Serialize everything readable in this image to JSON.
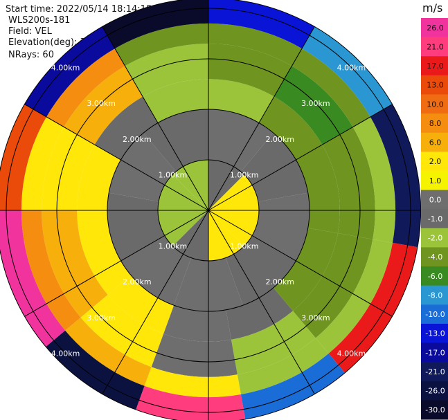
{
  "header": {
    "start_time": "Start time: 2022/05/14 18:14:18",
    "device": "WLS200s-181",
    "field": "Field: VEL",
    "elevation": "Elevation(deg): 35.30",
    "nrays": "NRays: 60"
  },
  "chart_data": {
    "type": "heatmap",
    "projection": "polar-ppi",
    "unit_label": "m/s",
    "range_rings": [
      {
        "value": 1,
        "label": "1.00km"
      },
      {
        "value": 2,
        "label": "2.00km"
      },
      {
        "value": 3,
        "label": "3.00km"
      },
      {
        "value": 4,
        "label": "4.00km"
      }
    ],
    "max_range_km": 4.2,
    "n_rays": 60,
    "spokes_deg": [
      0,
      30,
      60,
      90,
      120,
      150,
      180,
      210,
      240,
      270,
      300,
      330
    ],
    "colorbar": {
      "ticks": [
        "26.0",
        "21.0",
        "17.0",
        "13.0",
        "10.0",
        "8.0",
        "6.0",
        "2.0",
        "1.0",
        "0.0",
        "-1.0",
        "-2.0",
        "-4.0",
        "-6.0",
        "-8.0",
        "-10.0",
        "-13.0",
        "-17.0",
        "-21.0",
        "-26.0",
        "-30.0"
      ],
      "colors": [
        "#f0339d",
        "#ff3c7e",
        "#ea1a1a",
        "#ea4a0a",
        "#f06c12",
        "#f48d10",
        "#f7b00b",
        "#ffe70a",
        "#f6f300",
        "#6e6e6e",
        "#6a6a6a",
        "#9cc43a",
        "#6f9520",
        "#3a8a22",
        "#2a96d2",
        "#1a6cd6",
        "#0a14d6",
        "#0a0a9c",
        "#101a5a",
        "#0c1240",
        "#0a0a2a"
      ],
      "label_light_from": 9
    },
    "range_bands": [
      {
        "r0": 0.0,
        "r1": 1.0,
        "az_deg": [
          0,
          45,
          90,
          135,
          180,
          225,
          270,
          315
        ],
        "velocity": [
          -1,
          2,
          2,
          2,
          -1,
          -2,
          -2,
          -2
        ]
      },
      {
        "r0": 1.0,
        "r1": 2.0,
        "az_deg": [
          0,
          40,
          80,
          120,
          160,
          200,
          240,
          280,
          320
        ],
        "velocity": [
          0,
          -1,
          0,
          -1,
          0,
          0,
          -1,
          0,
          -1
        ]
      },
      {
        "r0": 2.0,
        "r1": 2.6,
        "az_deg": [
          0,
          30,
          60,
          100,
          140,
          170,
          200,
          230,
          270,
          300,
          330
        ],
        "velocity": [
          -2,
          -4,
          -4,
          -4,
          -1,
          0,
          2,
          2,
          2,
          -1,
          -2
        ]
      },
      {
        "r0": 2.6,
        "r1": 3.3,
        "az_deg": [
          0,
          30,
          60,
          100,
          140,
          170,
          200,
          230,
          270,
          300,
          330
        ],
        "velocity": [
          -4,
          -6,
          -4,
          -4,
          -2,
          0,
          2,
          6,
          2,
          6,
          -2
        ]
      },
      {
        "r0": 3.3,
        "r1": 3.7,
        "az_deg": [
          0,
          30,
          60,
          100,
          140,
          170,
          200,
          230,
          270,
          300,
          330
        ],
        "velocity": [
          -4,
          -4,
          -2,
          -2,
          -2,
          2,
          6,
          8,
          2,
          8,
          -4
        ]
      },
      {
        "r0": 3.7,
        "r1": 4.2,
        "az_deg": [
          0,
          30,
          60,
          100,
          140,
          170,
          200,
          230,
          270,
          300,
          330
        ],
        "velocity": [
          -13,
          -8,
          -21,
          17,
          -10,
          21,
          -26,
          26,
          13,
          -17,
          -30
        ]
      }
    ]
  }
}
